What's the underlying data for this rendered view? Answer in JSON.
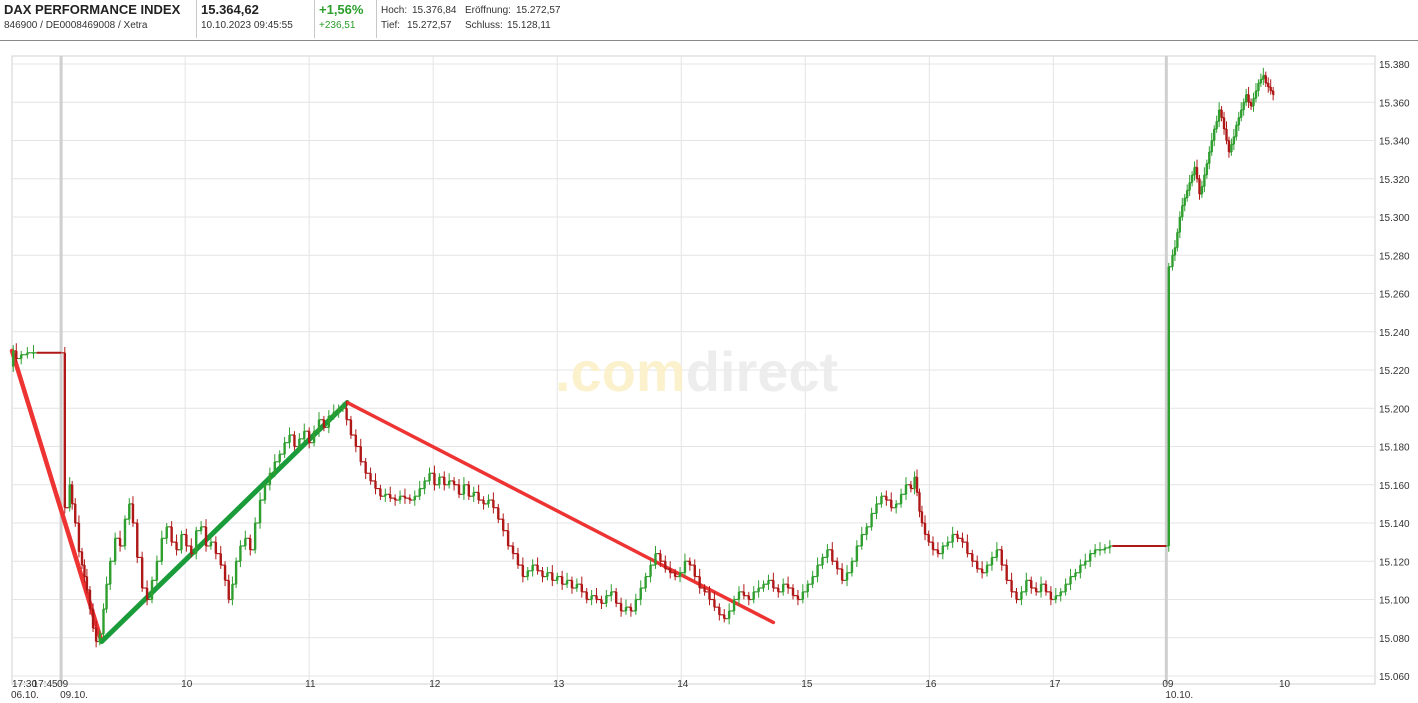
{
  "header": {
    "index_name": "DAX PERFORMANCE INDEX",
    "identifiers": "846900 / DE0008469008 / Xetra",
    "price": "15.364,62",
    "datetime": "10.10.2023 09:45:55",
    "change_pct": "+1,56%",
    "change_abs": "+236,51",
    "hoch_label": "Hoch:",
    "hoch_value": "15.376,84",
    "eroeffnung_label": "Eröffnung:",
    "eroeffnung_value": "15.272,57",
    "tief_label": "Tief:",
    "tief_value": "15.272,57",
    "schluss_label": "Schluss:",
    "schluss_value": "15.128,11"
  },
  "watermark": {
    "prefix": ".com",
    "suffix": "direct"
  },
  "colors": {
    "up": "#2e9e2e",
    "down": "#b01818",
    "trend_up": "#1a9c3a",
    "trend_down": "#ee3333",
    "grid": "#e4e4e4",
    "separator": "#cfcfcf"
  },
  "chart_data": {
    "type": "candlestick",
    "y_axis_position": "right",
    "ylim": [
      15060,
      15380
    ],
    "yticks": [
      15380,
      15360,
      15340,
      15320,
      15300,
      15280,
      15260,
      15240,
      15220,
      15200,
      15180,
      15160,
      15140,
      15120,
      15100,
      15080,
      15060
    ],
    "ytick_labels": [
      "15.380",
      "15.360",
      "15.340",
      "15.320",
      "15.300",
      "15.280",
      "15.260",
      "15.240",
      "15.220",
      "15.200",
      "15.180",
      "15.160",
      "15.140",
      "15.120",
      "15.100",
      "15.080",
      "15.060"
    ],
    "xlim": [
      0,
      1000
    ],
    "xticks": [
      {
        "x": 0,
        "label": "17:30",
        "sub": "06.10."
      },
      {
        "x": 20,
        "label": "17:45",
        "sub": ""
      },
      {
        "x": 40,
        "label": "09",
        "sub": "09.10."
      },
      {
        "x": 141,
        "label": "10",
        "sub": ""
      },
      {
        "x": 242,
        "label": "11",
        "sub": ""
      },
      {
        "x": 343,
        "label": "12",
        "sub": ""
      },
      {
        "x": 444,
        "label": "13",
        "sub": ""
      },
      {
        "x": 545,
        "label": "14",
        "sub": ""
      },
      {
        "x": 646,
        "label": "15",
        "sub": ""
      },
      {
        "x": 747,
        "label": "16",
        "sub": ""
      },
      {
        "x": 848,
        "label": "17",
        "sub": ""
      },
      {
        "x": 940,
        "label": "09",
        "sub": "10.10."
      },
      {
        "x": 1035,
        "label": "10",
        "sub": ""
      }
    ],
    "session_separators": [
      40,
      940
    ],
    "price_path": [
      [
        0,
        15222
      ],
      [
        2,
        15230
      ],
      [
        5,
        15226
      ],
      [
        10,
        15228
      ],
      [
        15,
        15229
      ],
      [
        20,
        15229
      ],
      [
        40,
        15229
      ],
      [
        46,
        15148
      ],
      [
        48,
        15160
      ],
      [
        50,
        15150
      ],
      [
        53,
        15140
      ],
      [
        56,
        15125
      ],
      [
        58,
        15118
      ],
      [
        60,
        15112
      ],
      [
        62,
        15105
      ],
      [
        65,
        15095
      ],
      [
        67,
        15085
      ],
      [
        70,
        15078
      ],
      [
        73,
        15082
      ],
      [
        76,
        15095
      ],
      [
        78,
        15108
      ],
      [
        82,
        15120
      ],
      [
        86,
        15132
      ],
      [
        90,
        15128
      ],
      [
        94,
        15142
      ],
      [
        97,
        15150
      ],
      [
        100,
        15140
      ],
      [
        104,
        15122
      ],
      [
        108,
        15106
      ],
      [
        112,
        15100
      ],
      [
        116,
        15110
      ],
      [
        120,
        15120
      ],
      [
        124,
        15132
      ],
      [
        128,
        15138
      ],
      [
        132,
        15130
      ],
      [
        136,
        15126
      ],
      [
        140,
        15134
      ],
      [
        144,
        15128
      ],
      [
        148,
        15124
      ],
      [
        152,
        15136
      ],
      [
        156,
        15138
      ],
      [
        160,
        15128
      ],
      [
        164,
        15130
      ],
      [
        168,
        15124
      ],
      [
        172,
        15118
      ],
      [
        175,
        15110
      ],
      [
        178,
        15100
      ],
      [
        181,
        15108
      ],
      [
        184,
        15120
      ],
      [
        188,
        15128
      ],
      [
        192,
        15132
      ],
      [
        196,
        15126
      ],
      [
        200,
        15140
      ],
      [
        204,
        15152
      ],
      [
        208,
        15160
      ],
      [
        212,
        15166
      ],
      [
        216,
        15172
      ],
      [
        220,
        15176
      ],
      [
        224,
        15182
      ],
      [
        228,
        15186
      ],
      [
        232,
        15180
      ],
      [
        236,
        15184
      ],
      [
        240,
        15188
      ],
      [
        244,
        15182
      ],
      [
        248,
        15188
      ],
      [
        252,
        15194
      ],
      [
        256,
        15190
      ],
      [
        260,
        15196
      ],
      [
        264,
        15198
      ],
      [
        268,
        15200
      ],
      [
        271,
        15200
      ],
      [
        274,
        15194
      ],
      [
        278,
        15186
      ],
      [
        282,
        15180
      ],
      [
        286,
        15172
      ],
      [
        290,
        15166
      ],
      [
        294,
        15162
      ],
      [
        298,
        15158
      ],
      [
        302,
        15154
      ],
      [
        306,
        15155
      ],
      [
        310,
        15153
      ],
      [
        314,
        15152
      ],
      [
        318,
        15154
      ],
      [
        322,
        15153
      ],
      [
        326,
        15152
      ],
      [
        330,
        15154
      ],
      [
        334,
        15158
      ],
      [
        338,
        15162
      ],
      [
        342,
        15166
      ],
      [
        346,
        15160
      ],
      [
        350,
        15164
      ],
      [
        354,
        15160
      ],
      [
        358,
        15162
      ],
      [
        362,
        15160
      ],
      [
        366,
        15155
      ],
      [
        370,
        15160
      ],
      [
        374,
        15154
      ],
      [
        378,
        15156
      ],
      [
        382,
        15152
      ],
      [
        386,
        15150
      ],
      [
        390,
        15152
      ],
      [
        394,
        15148
      ],
      [
        398,
        15142
      ],
      [
        402,
        15136
      ],
      [
        406,
        15128
      ],
      [
        410,
        15124
      ],
      [
        414,
        15118
      ],
      [
        418,
        15112
      ],
      [
        422,
        15115
      ],
      [
        426,
        15118
      ],
      [
        430,
        15115
      ],
      [
        434,
        15112
      ],
      [
        438,
        15114
      ],
      [
        442,
        15110
      ],
      [
        446,
        15112
      ],
      [
        450,
        15108
      ],
      [
        454,
        15110
      ],
      [
        458,
        15106
      ],
      [
        462,
        15108
      ],
      [
        466,
        15104
      ],
      [
        470,
        15100
      ],
      [
        474,
        15102
      ],
      [
        478,
        15100
      ],
      [
        482,
        15098
      ],
      [
        486,
        15102
      ],
      [
        490,
        15104
      ],
      [
        494,
        15098
      ],
      [
        498,
        15094
      ],
      [
        502,
        15096
      ],
      [
        506,
        15094
      ],
      [
        510,
        15100
      ],
      [
        514,
        15106
      ],
      [
        518,
        15112
      ],
      [
        522,
        15118
      ],
      [
        526,
        15124
      ],
      [
        530,
        15120
      ],
      [
        534,
        15116
      ],
      [
        538,
        15114
      ],
      [
        542,
        15112
      ],
      [
        546,
        15114
      ],
      [
        550,
        15120
      ],
      [
        554,
        15118
      ],
      [
        558,
        15112
      ],
      [
        562,
        15106
      ],
      [
        566,
        15104
      ],
      [
        570,
        15100
      ],
      [
        574,
        15096
      ],
      [
        578,
        15092
      ],
      [
        582,
        15090
      ],
      [
        586,
        15094
      ],
      [
        590,
        15100
      ],
      [
        594,
        15104
      ],
      [
        598,
        15102
      ],
      [
        602,
        15100
      ],
      [
        606,
        15104
      ],
      [
        610,
        15106
      ],
      [
        614,
        15108
      ],
      [
        618,
        15110
      ],
      [
        622,
        15106
      ],
      [
        626,
        15104
      ],
      [
        630,
        15108
      ],
      [
        634,
        15106
      ],
      [
        638,
        15102
      ],
      [
        642,
        15100
      ],
      [
        646,
        15104
      ],
      [
        650,
        15108
      ],
      [
        654,
        15112
      ],
      [
        658,
        15118
      ],
      [
        662,
        15122
      ],
      [
        666,
        15126
      ],
      [
        670,
        15120
      ],
      [
        674,
        15116
      ],
      [
        678,
        15110
      ],
      [
        682,
        15114
      ],
      [
        686,
        15120
      ],
      [
        690,
        15128
      ],
      [
        694,
        15134
      ],
      [
        698,
        15138
      ],
      [
        702,
        15145
      ],
      [
        706,
        15150
      ],
      [
        710,
        15154
      ],
      [
        714,
        15152
      ],
      [
        718,
        15148
      ],
      [
        722,
        15150
      ],
      [
        726,
        15155
      ],
      [
        730,
        15160
      ],
      [
        734,
        15158
      ],
      [
        736,
        15164
      ],
      [
        738,
        15156
      ],
      [
        740,
        15146
      ],
      [
        742,
        15140
      ],
      [
        745,
        15134
      ],
      [
        748,
        15130
      ],
      [
        752,
        15126
      ],
      [
        756,
        15124
      ],
      [
        760,
        15128
      ],
      [
        764,
        15130
      ],
      [
        768,
        15134
      ],
      [
        772,
        15132
      ],
      [
        776,
        15130
      ],
      [
        780,
        15124
      ],
      [
        784,
        15120
      ],
      [
        788,
        15116
      ],
      [
        792,
        15114
      ],
      [
        796,
        15118
      ],
      [
        800,
        15122
      ],
      [
        804,
        15126
      ],
      [
        808,
        15118
      ],
      [
        812,
        15110
      ],
      [
        816,
        15104
      ],
      [
        820,
        15100
      ],
      [
        824,
        15104
      ],
      [
        828,
        15110
      ],
      [
        832,
        15106
      ],
      [
        836,
        15104
      ],
      [
        840,
        15108
      ],
      [
        844,
        15104
      ],
      [
        848,
        15100
      ],
      [
        852,
        15102
      ],
      [
        856,
        15104
      ],
      [
        860,
        15108
      ],
      [
        864,
        15112
      ],
      [
        868,
        15114
      ],
      [
        872,
        15118
      ],
      [
        876,
        15120
      ],
      [
        880,
        15124
      ],
      [
        884,
        15126
      ],
      [
        888,
        15126
      ],
      [
        892,
        15127
      ],
      [
        896,
        15128
      ],
      [
        940,
        15128
      ],
      [
        944,
        15274
      ],
      [
        946,
        15280
      ],
      [
        948,
        15284
      ],
      [
        950,
        15292
      ],
      [
        952,
        15300
      ],
      [
        954,
        15306
      ],
      [
        956,
        15310
      ],
      [
        958,
        15314
      ],
      [
        960,
        15318
      ],
      [
        962,
        15322
      ],
      [
        964,
        15326
      ],
      [
        966,
        15320
      ],
      [
        968,
        15312
      ],
      [
        970,
        15316
      ],
      [
        972,
        15322
      ],
      [
        974,
        15328
      ],
      [
        976,
        15334
      ],
      [
        978,
        15340
      ],
      [
        980,
        15346
      ],
      [
        982,
        15350
      ],
      [
        984,
        15356
      ],
      [
        986,
        15352
      ],
      [
        988,
        15346
      ],
      [
        990,
        15340
      ],
      [
        992,
        15334
      ],
      [
        994,
        15338
      ],
      [
        996,
        15342
      ],
      [
        998,
        15348
      ],
      [
        1000,
        15352
      ],
      [
        1002,
        15356
      ],
      [
        1004,
        15360
      ],
      [
        1006,
        15364
      ],
      [
        1008,
        15360
      ],
      [
        1010,
        15358
      ],
      [
        1012,
        15362
      ],
      [
        1014,
        15366
      ],
      [
        1016,
        15370
      ],
      [
        1018,
        15372
      ],
      [
        1020,
        15374
      ],
      [
        1022,
        15370
      ],
      [
        1024,
        15368
      ],
      [
        1026,
        15366
      ],
      [
        1028,
        15364
      ]
    ],
    "trend_lines": [
      {
        "color": "red",
        "from": [
          0,
          15230
        ],
        "to": [
          73,
          15078
        ]
      },
      {
        "color": "green",
        "from": [
          73,
          15078
        ],
        "to": [
          273,
          15203
        ]
      },
      {
        "color": "red",
        "from": [
          273,
          15203
        ],
        "to": [
          620,
          15088
        ]
      }
    ]
  }
}
